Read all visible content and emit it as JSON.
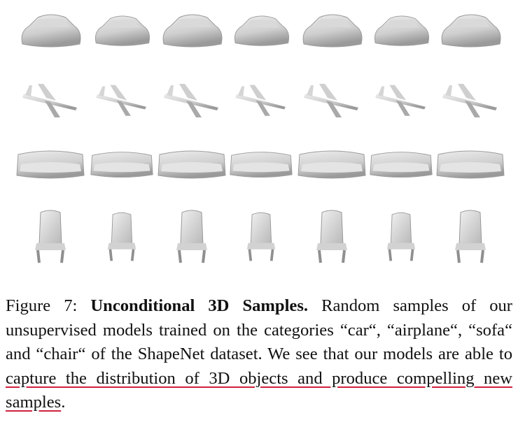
{
  "figure": {
    "rows": [
      {
        "category": "car",
        "count": 7
      },
      {
        "category": "airplane",
        "count": 7
      },
      {
        "category": "sofa",
        "count": 7
      },
      {
        "category": "chair",
        "count": 7
      }
    ]
  },
  "caption": {
    "label": "Figure 7:",
    "title": "Unconditional 3D Samples.",
    "text_before": "Random samples of our unsupervised models trained on the categories “car“, “airplane“, “sofa“ and “chair“ of the ShapeNet dataset. We see that our models are able to ",
    "highlighted": "capture the distribution of 3D objects and produce compelling new samples",
    "text_after": ".",
    "highlight_color": "#d0213f"
  },
  "colors": {
    "shape_light": "#e6e6e6",
    "shape_mid": "#c4c4c4",
    "shape_dark": "#8f8f8f"
  }
}
